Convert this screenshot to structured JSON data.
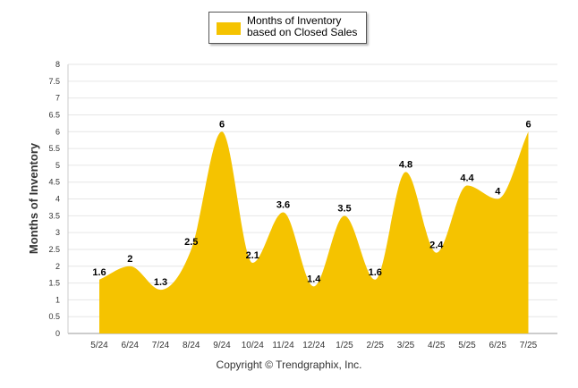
{
  "chart_data": {
    "type": "area",
    "series": [
      {
        "name": "Months of Inventory based on Closed Sales",
        "color": "#F5C300",
        "values": [
          1.6,
          2,
          1.3,
          2.5,
          6,
          2.1,
          3.6,
          1.4,
          3.5,
          1.6,
          4.8,
          2.4,
          4.4,
          4,
          6
        ]
      }
    ],
    "categories": [
      "5/24",
      "6/24",
      "7/24",
      "8/24",
      "9/24",
      "10/24",
      "11/24",
      "12/24",
      "1/25",
      "2/25",
      "3/25",
      "4/25",
      "5/25",
      "6/25",
      "7/25"
    ],
    "data_labels": [
      "1.6",
      "2",
      "1.3",
      "2.5",
      "6",
      "2.1",
      "3.6",
      "1.4",
      "3.5",
      "1.6",
      "4.8",
      "2.4",
      "4.4",
      "4",
      "6"
    ],
    "y_ticks": [
      "0",
      "0.5",
      "1",
      "1.5",
      "2",
      "2.5",
      "3",
      "3.5",
      "4",
      "4.5",
      "5",
      "5.5",
      "6",
      "6.5",
      "7",
      "7.5",
      "8"
    ],
    "ylabel": "Months of Inventory",
    "xlabel": "",
    "ylim": [
      0,
      8
    ],
    "grid": true,
    "legend_position": "top-center",
    "legend_label": "Months of Inventory based on Closed Sales",
    "credit": "Copyright © Trendgraphix, Inc."
  }
}
